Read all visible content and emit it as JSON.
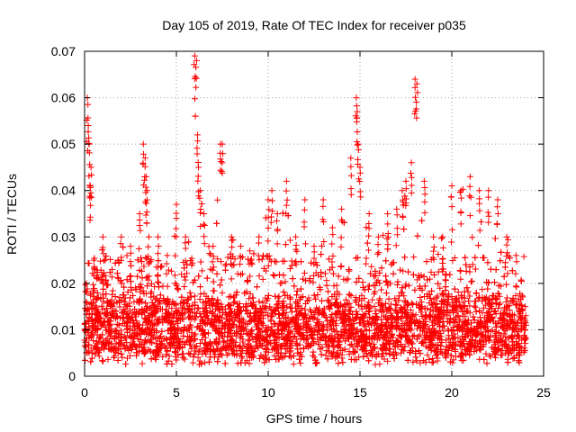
{
  "chart_data": {
    "type": "scatter",
    "title": "Day 105 of 2019, Rate Of TEC Index for receiver p035",
    "xlabel": "GPS time / hours",
    "ylabel": "ROTI / TECUs",
    "xlim": [
      0,
      25
    ],
    "ylim": [
      0,
      0.07
    ],
    "x_ticks": [
      0,
      5,
      10,
      15,
      20,
      25
    ],
    "y_ticks": [
      0,
      0.01,
      0.02,
      0.03,
      0.04,
      0.05,
      0.06,
      0.07
    ],
    "x_tick_labels": [
      "0",
      "5",
      "10",
      "15",
      "20",
      "25"
    ],
    "y_tick_labels": [
      "0",
      "0.01",
      "0.02",
      "0.03",
      "0.04",
      "0.05",
      "0.06",
      "0.07"
    ],
    "grid": true,
    "marker": "+",
    "marker_color": "#ff0000",
    "series": [
      {
        "name": "ROTI",
        "description_points": "dense band roughly 0.003-0.02 across 0-24 h with spikes",
        "x": [
          0.1,
          0.15,
          0.2,
          0.25,
          0.3,
          0.35,
          0.5,
          1.0,
          1.5,
          2.0,
          2.5,
          3.0,
          3.2,
          3.3,
          3.35,
          3.4,
          3.5,
          4.0,
          4.5,
          5.0,
          5.5,
          6.0,
          6.1,
          6.15,
          6.2,
          6.3,
          6.5,
          7.0,
          7.4,
          7.5,
          8.0,
          8.5,
          9.0,
          9.5,
          10.0,
          10.2,
          10.5,
          11.0,
          11.5,
          12.0,
          12.5,
          13.0,
          13.5,
          14.0,
          14.5,
          14.8,
          14.85,
          14.9,
          15.0,
          15.5,
          16.0,
          16.5,
          17.0,
          17.3,
          17.5,
          17.8,
          18.0,
          18.1,
          18.5,
          19.0,
          19.5,
          20.0,
          20.5,
          21.0,
          21.5,
          22.0,
          22.5,
          23.0,
          23.5,
          24.0
        ],
        "y": [
          0.02,
          0.06,
          0.054,
          0.05,
          0.041,
          0.045,
          0.025,
          0.03,
          0.023,
          0.03,
          0.028,
          0.035,
          0.05,
          0.047,
          0.043,
          0.04,
          0.03,
          0.03,
          0.026,
          0.037,
          0.03,
          0.069,
          0.068,
          0.052,
          0.045,
          0.04,
          0.035,
          0.028,
          0.05,
          0.05,
          0.03,
          0.028,
          0.027,
          0.03,
          0.038,
          0.04,
          0.035,
          0.042,
          0.03,
          0.038,
          0.028,
          0.038,
          0.032,
          0.036,
          0.047,
          0.06,
          0.057,
          0.05,
          0.045,
          0.035,
          0.03,
          0.035,
          0.036,
          0.04,
          0.042,
          0.046,
          0.064,
          0.063,
          0.042,
          0.03,
          0.03,
          0.041,
          0.04,
          0.043,
          0.04,
          0.04,
          0.038,
          0.03,
          0.026,
          0.015
        ]
      }
    ]
  }
}
